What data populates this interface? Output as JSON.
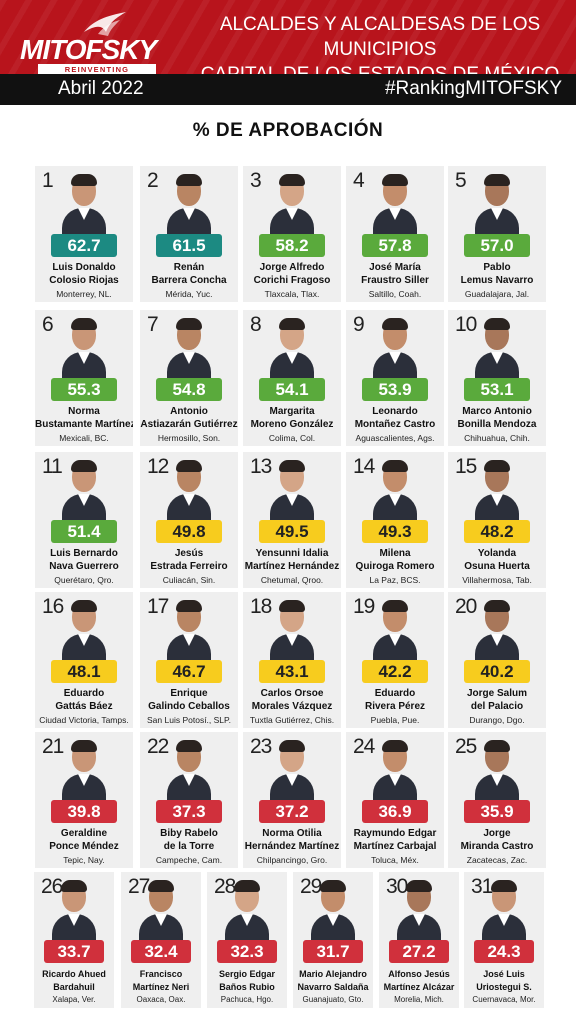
{
  "header": {
    "logo_text": "MITOFSKY",
    "logo_tagline": "REINVENTING RESEARCH",
    "title_line1": "ALCALDES Y ALCALDESAS DE LOS MUNICIPIOS",
    "title_line2": "CAPITAL DE LOS ESTADOS DE MÉXICO",
    "date": "Abril 2022",
    "hashtag": "#RankingMITOFSKY"
  },
  "subtitle": "% DE APROBACIÓN",
  "colors": {
    "teal": "#1c8a82",
    "green": "#5aaa3c",
    "yellow": "#f7cc1e",
    "red": "#d0303c",
    "header_red": "#b8141c"
  },
  "mayors": [
    {
      "rank": "1",
      "score": "62.7",
      "name1": "Luis Donaldo",
      "name2": "Colosio Riojas",
      "city": "Monterrey, NL.",
      "color": "#1c8a82",
      "text_color": "#ffffff"
    },
    {
      "rank": "2",
      "score": "61.5",
      "name1": "Renán",
      "name2": "Barrera Concha",
      "city": "Mérida, Yuc.",
      "color": "#1c8a82",
      "text_color": "#ffffff"
    },
    {
      "rank": "3",
      "score": "58.2",
      "name1": "Jorge Alfredo",
      "name2": "Corichi Fragoso",
      "city": "Tlaxcala, Tlax.",
      "color": "#5aaa3c",
      "text_color": "#ffffff"
    },
    {
      "rank": "4",
      "score": "57.8",
      "name1": "José María",
      "name2": "Fraustro Siller",
      "city": "Saltillo, Coah.",
      "color": "#5aaa3c",
      "text_color": "#ffffff"
    },
    {
      "rank": "5",
      "score": "57.0",
      "name1": "Pablo",
      "name2": "Lemus Navarro",
      "city": "Guadalajara, Jal.",
      "color": "#5aaa3c",
      "text_color": "#ffffff"
    },
    {
      "rank": "6",
      "score": "55.3",
      "name1": "Norma",
      "name2": "Bustamante Martínez",
      "city": "Mexicali, BC.",
      "color": "#5aaa3c",
      "text_color": "#ffffff"
    },
    {
      "rank": "7",
      "score": "54.8",
      "name1": "Antonio",
      "name2": "Astiazarán Gutiérrez",
      "city": "Hermosillo, Son.",
      "color": "#5aaa3c",
      "text_color": "#ffffff"
    },
    {
      "rank": "8",
      "score": "54.1",
      "name1": "Margarita",
      "name2": "Moreno González",
      "city": "Colima, Col.",
      "color": "#5aaa3c",
      "text_color": "#ffffff"
    },
    {
      "rank": "9",
      "score": "53.9",
      "name1": "Leonardo",
      "name2": "Montañez Castro",
      "city": "Aguascalientes, Ags.",
      "color": "#5aaa3c",
      "text_color": "#ffffff"
    },
    {
      "rank": "10",
      "score": "53.1",
      "name1": "Marco Antonio",
      "name2": "Bonilla Mendoza",
      "city": "Chihuahua, Chih.",
      "color": "#5aaa3c",
      "text_color": "#ffffff"
    },
    {
      "rank": "11",
      "score": "51.4",
      "name1": "Luis Bernardo",
      "name2": "Nava Guerrero",
      "city": "Querétaro, Qro.",
      "color": "#5aaa3c",
      "text_color": "#ffffff"
    },
    {
      "rank": "12",
      "score": "49.8",
      "name1": "Jesús",
      "name2": "Estrada Ferreiro",
      "city": "Culiacán, Sin.",
      "color": "#f7cc1e",
      "text_color": "#222222"
    },
    {
      "rank": "13",
      "score": "49.5",
      "name1": "Yensunni Idalia",
      "name2": "Martínez Hernández",
      "city": "Chetumal, Qroo.",
      "color": "#f7cc1e",
      "text_color": "#222222"
    },
    {
      "rank": "14",
      "score": "49.3",
      "name1": "Milena",
      "name2": "Quiroga Romero",
      "city": "La Paz, BCS.",
      "color": "#f7cc1e",
      "text_color": "#222222"
    },
    {
      "rank": "15",
      "score": "48.2",
      "name1": "Yolanda",
      "name2": "Osuna Huerta",
      "city": "Villahermosa, Tab.",
      "color": "#f7cc1e",
      "text_color": "#222222"
    },
    {
      "rank": "16",
      "score": "48.1",
      "name1": "Eduardo",
      "name2": "Gattás Báez",
      "city": "Ciudad Victoria, Tamps.",
      "color": "#f7cc1e",
      "text_color": "#222222"
    },
    {
      "rank": "17",
      "score": "46.7",
      "name1": "Enrique",
      "name2": "Galindo Ceballos",
      "city": "San Luis Potosí., SLP.",
      "color": "#f7cc1e",
      "text_color": "#222222"
    },
    {
      "rank": "18",
      "score": "43.1",
      "name1": "Carlos Orsoe",
      "name2": "Morales Vázquez",
      "city": "Tuxtla Gutiérrez, Chis.",
      "color": "#f7cc1e",
      "text_color": "#222222"
    },
    {
      "rank": "19",
      "score": "42.2",
      "name1": "Eduardo",
      "name2": "Rivera Pérez",
      "city": "Puebla, Pue.",
      "color": "#f7cc1e",
      "text_color": "#222222"
    },
    {
      "rank": "20",
      "score": "40.2",
      "name1": "Jorge Salum",
      "name2": "del Palacio",
      "city": "Durango, Dgo.",
      "color": "#f7cc1e",
      "text_color": "#222222"
    },
    {
      "rank": "21",
      "score": "39.8",
      "name1": "Geraldine",
      "name2": "Ponce Méndez",
      "city": "Tepic, Nay.",
      "color": "#d0303c",
      "text_color": "#ffffff"
    },
    {
      "rank": "22",
      "score": "37.3",
      "name1": "Biby Rabelo",
      "name2": "de la Torre",
      "city": "Campeche, Cam.",
      "color": "#d0303c",
      "text_color": "#ffffff"
    },
    {
      "rank": "23",
      "score": "37.2",
      "name1": "Norma Otilia",
      "name2": "Hernández Martínez",
      "city": "Chilpancingo, Gro.",
      "color": "#d0303c",
      "text_color": "#ffffff"
    },
    {
      "rank": "24",
      "score": "36.9",
      "name1": "Raymundo Edgar",
      "name2": "Martínez Carbajal",
      "city": "Toluca, Méx.",
      "color": "#d0303c",
      "text_color": "#ffffff"
    },
    {
      "rank": "25",
      "score": "35.9",
      "name1": "Jorge",
      "name2": "Miranda Castro",
      "city": "Zacatecas, Zac.",
      "color": "#d0303c",
      "text_color": "#ffffff"
    },
    {
      "rank": "26",
      "score": "33.7",
      "name1": "Ricardo Ahued",
      "name2": "Bardahuil",
      "city": "Xalapa, Ver.",
      "color": "#d0303c",
      "text_color": "#ffffff"
    },
    {
      "rank": "27",
      "score": "32.4",
      "name1": "Francisco",
      "name2": "Martínez Neri",
      "city": "Oaxaca, Oax.",
      "color": "#d0303c",
      "text_color": "#ffffff"
    },
    {
      "rank": "28",
      "score": "32.3",
      "name1": "Sergio Edgar",
      "name2": "Baños Rubio",
      "city": "Pachuca, Hgo.",
      "color": "#d0303c",
      "text_color": "#ffffff"
    },
    {
      "rank": "29",
      "score": "31.7",
      "name1": "Mario Alejandro",
      "name2": "Navarro Saldaña",
      "city": "Guanajuato, Gto.",
      "color": "#d0303c",
      "text_color": "#ffffff"
    },
    {
      "rank": "30",
      "score": "27.2",
      "name1": "Alfonso Jesús",
      "name2": "Martínez Alcázar",
      "city": "Morelia, Mich.",
      "color": "#d0303c",
      "text_color": "#ffffff"
    },
    {
      "rank": "31",
      "score": "24.3",
      "name1": "José Luis",
      "name2": "Uriostegui S.",
      "city": "Cuernavaca, Mor.",
      "color": "#d0303c",
      "text_color": "#ffffff"
    }
  ]
}
